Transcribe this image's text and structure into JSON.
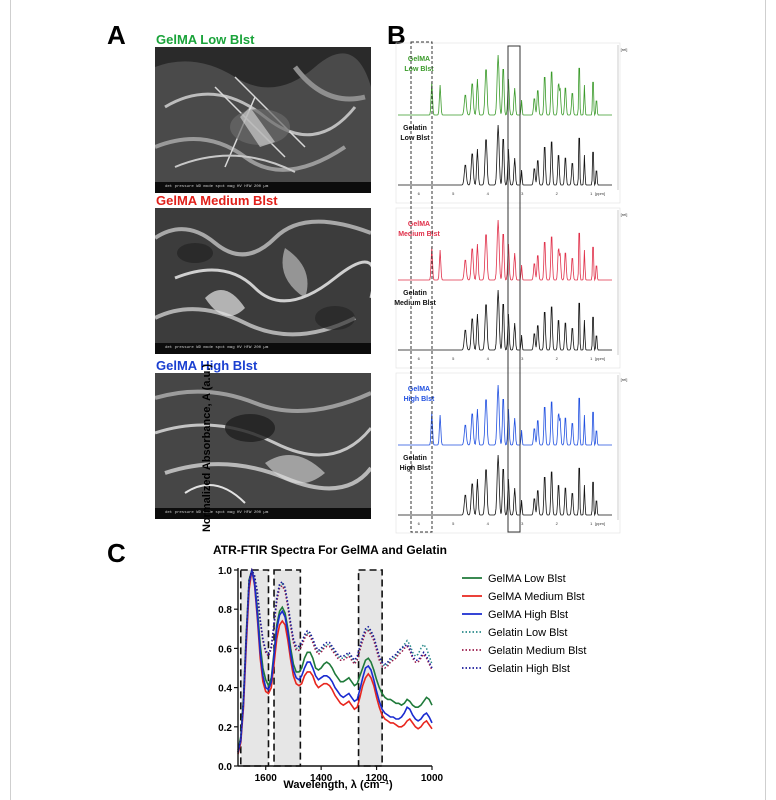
{
  "panels": {
    "a": "A",
    "b": "B",
    "c": "C"
  },
  "sem": [
    {
      "title": "GelMA Low Blst",
      "color": "#1aa33a",
      "meta": "det   pressure   WD   mode  spot  mag   HV      HFW                                       200 µm"
    },
    {
      "title": "GelMA Medium Blst",
      "color": "#e0201a",
      "meta": "det   pressure   WD   mode  spot  mag   HV      HFW                                       200 µm"
    },
    {
      "title": "GelMA High Blst",
      "color": "#1a3fd0",
      "meta": "det   pressure   WD   mode  spot  mag   HV      HFW                                       200 µm"
    }
  ],
  "nmr": {
    "groups": [
      {
        "top_label": [
          "GelMA",
          "Low Blst"
        ],
        "top_color": "#3a9a2a",
        "bottom_label": [
          "Gelatin",
          "Low Blst"
        ]
      },
      {
        "top_label": [
          "GelMA",
          "Medium Blst"
        ],
        "top_color": "#e0304a",
        "bottom_label": [
          "Gelatin",
          "Medium Blst"
        ]
      },
      {
        "top_label": [
          "GelMA",
          "High Blst"
        ],
        "top_color": "#2050e0",
        "bottom_label": [
          "Gelatin",
          "High Blst"
        ]
      }
    ],
    "axis_unit": "[ppm]",
    "x_ticks": [
      "6",
      "5",
      "4",
      "3",
      "2",
      "1"
    ],
    "y_unit": "[rel]"
  },
  "chart_data": {
    "type": "line",
    "title": "ATR-FTIR Spectra For GelMA and Gelatin",
    "xlabel": "Wavelength, λ (cm⁻¹)",
    "ylabel": "Normalized Absorbance, A (a.u.)",
    "xlim": [
      1700,
      1000
    ],
    "ylim": [
      0.0,
      1.0
    ],
    "x_ticks": [
      1600,
      1400,
      1200,
      1000
    ],
    "y_ticks": [
      0.0,
      0.2,
      0.4,
      0.6,
      0.8,
      1.0
    ],
    "highlight_bands": [
      [
        1690,
        1590
      ],
      [
        1570,
        1475
      ],
      [
        1265,
        1180
      ]
    ],
    "legend_position": "right",
    "x": [
      1700,
      1690,
      1680,
      1670,
      1660,
      1650,
      1640,
      1630,
      1620,
      1610,
      1600,
      1590,
      1580,
      1570,
      1560,
      1550,
      1540,
      1530,
      1520,
      1510,
      1500,
      1490,
      1480,
      1470,
      1460,
      1450,
      1440,
      1430,
      1420,
      1410,
      1400,
      1390,
      1380,
      1370,
      1360,
      1350,
      1340,
      1330,
      1320,
      1310,
      1300,
      1290,
      1280,
      1270,
      1260,
      1250,
      1240,
      1230,
      1220,
      1210,
      1200,
      1190,
      1180,
      1170,
      1160,
      1150,
      1140,
      1130,
      1120,
      1110,
      1100,
      1090,
      1080,
      1070,
      1060,
      1050,
      1040,
      1030,
      1020,
      1010,
      1000
    ],
    "series": [
      {
        "name": "GelMA Low Blst",
        "color": "#1f7a3a",
        "dash": "solid",
        "values": [
          0.08,
          0.15,
          0.35,
          0.68,
          0.95,
          1.0,
          0.94,
          0.8,
          0.62,
          0.5,
          0.44,
          0.41,
          0.45,
          0.58,
          0.72,
          0.79,
          0.81,
          0.78,
          0.7,
          0.6,
          0.52,
          0.48,
          0.48,
          0.5,
          0.55,
          0.58,
          0.58,
          0.55,
          0.5,
          0.49,
          0.5,
          0.52,
          0.53,
          0.52,
          0.5,
          0.47,
          0.45,
          0.43,
          0.43,
          0.44,
          0.45,
          0.43,
          0.41,
          0.42,
          0.46,
          0.5,
          0.54,
          0.55,
          0.53,
          0.49,
          0.44,
          0.4,
          0.37,
          0.35,
          0.34,
          0.34,
          0.33,
          0.32,
          0.32,
          0.31,
          0.32,
          0.34,
          0.33,
          0.31,
          0.3,
          0.3,
          0.31,
          0.33,
          0.35,
          0.34,
          0.31
        ]
      },
      {
        "name": "GelMA Medium Blst",
        "color": "#e8261e",
        "dash": "solid",
        "values": [
          0.06,
          0.12,
          0.3,
          0.62,
          0.9,
          1.0,
          0.92,
          0.75,
          0.55,
          0.43,
          0.38,
          0.37,
          0.4,
          0.52,
          0.65,
          0.72,
          0.74,
          0.72,
          0.64,
          0.54,
          0.46,
          0.42,
          0.41,
          0.42,
          0.46,
          0.48,
          0.48,
          0.46,
          0.42,
          0.4,
          0.41,
          0.42,
          0.42,
          0.41,
          0.39,
          0.36,
          0.34,
          0.32,
          0.31,
          0.32,
          0.33,
          0.31,
          0.29,
          0.3,
          0.35,
          0.41,
          0.45,
          0.47,
          0.45,
          0.41,
          0.35,
          0.3,
          0.26,
          0.24,
          0.23,
          0.22,
          0.22,
          0.21,
          0.2,
          0.2,
          0.21,
          0.23,
          0.24,
          0.22,
          0.2,
          0.19,
          0.2,
          0.22,
          0.23,
          0.21,
          0.19
        ]
      },
      {
        "name": "GelMA High Blst",
        "color": "#1a2bd0",
        "dash": "solid",
        "values": [
          0.07,
          0.13,
          0.32,
          0.65,
          0.93,
          1.0,
          0.93,
          0.77,
          0.58,
          0.46,
          0.4,
          0.39,
          0.43,
          0.56,
          0.7,
          0.77,
          0.79,
          0.76,
          0.68,
          0.57,
          0.49,
          0.45,
          0.44,
          0.46,
          0.5,
          0.53,
          0.53,
          0.5,
          0.46,
          0.44,
          0.45,
          0.46,
          0.46,
          0.45,
          0.43,
          0.4,
          0.38,
          0.36,
          0.35,
          0.36,
          0.37,
          0.35,
          0.33,
          0.34,
          0.39,
          0.45,
          0.5,
          0.51,
          0.49,
          0.44,
          0.38,
          0.33,
          0.29,
          0.27,
          0.26,
          0.25,
          0.25,
          0.24,
          0.24,
          0.25,
          0.27,
          0.3,
          0.29,
          0.26,
          0.24,
          0.23,
          0.24,
          0.26,
          0.27,
          0.25,
          0.22
        ]
      },
      {
        "name": "Gelatin Low Blst",
        "color": "#2a8a8a",
        "dash": "dotted",
        "values": [
          0.07,
          0.14,
          0.34,
          0.67,
          0.95,
          1.0,
          0.97,
          0.88,
          0.74,
          0.64,
          0.58,
          0.56,
          0.6,
          0.72,
          0.85,
          0.92,
          0.93,
          0.9,
          0.82,
          0.72,
          0.64,
          0.6,
          0.6,
          0.62,
          0.66,
          0.68,
          0.67,
          0.64,
          0.6,
          0.58,
          0.59,
          0.61,
          0.62,
          0.62,
          0.6,
          0.58,
          0.56,
          0.55,
          0.55,
          0.56,
          0.57,
          0.55,
          0.53,
          0.55,
          0.6,
          0.65,
          0.69,
          0.7,
          0.68,
          0.65,
          0.6,
          0.55,
          0.52,
          0.51,
          0.52,
          0.54,
          0.55,
          0.56,
          0.58,
          0.6,
          0.62,
          0.64,
          0.62,
          0.58,
          0.56,
          0.57,
          0.6,
          0.62,
          0.6,
          0.56,
          0.52
        ]
      },
      {
        "name": "Gelatin Medium Blst",
        "color": "#9a1a4a",
        "dash": "dotted",
        "values": [
          0.07,
          0.14,
          0.33,
          0.66,
          0.94,
          1.0,
          0.97,
          0.88,
          0.74,
          0.64,
          0.58,
          0.56,
          0.6,
          0.71,
          0.84,
          0.91,
          0.92,
          0.89,
          0.81,
          0.71,
          0.63,
          0.59,
          0.59,
          0.61,
          0.65,
          0.67,
          0.66,
          0.63,
          0.59,
          0.57,
          0.58,
          0.6,
          0.61,
          0.61,
          0.59,
          0.57,
          0.55,
          0.54,
          0.54,
          0.55,
          0.56,
          0.54,
          0.52,
          0.54,
          0.59,
          0.64,
          0.68,
          0.69,
          0.67,
          0.64,
          0.59,
          0.54,
          0.51,
          0.5,
          0.51,
          0.53,
          0.54,
          0.55,
          0.57,
          0.58,
          0.6,
          0.61,
          0.59,
          0.55,
          0.53,
          0.53,
          0.55,
          0.57,
          0.55,
          0.52,
          0.49
        ]
      },
      {
        "name": "Gelatin High Blst",
        "color": "#1a1a9a",
        "dash": "dotted",
        "values": [
          0.07,
          0.14,
          0.34,
          0.67,
          0.95,
          1.0,
          0.97,
          0.89,
          0.75,
          0.65,
          0.59,
          0.57,
          0.61,
          0.73,
          0.86,
          0.93,
          0.94,
          0.91,
          0.83,
          0.73,
          0.65,
          0.61,
          0.61,
          0.63,
          0.67,
          0.69,
          0.68,
          0.65,
          0.61,
          0.59,
          0.6,
          0.62,
          0.63,
          0.63,
          0.61,
          0.59,
          0.57,
          0.56,
          0.56,
          0.57,
          0.58,
          0.56,
          0.54,
          0.56,
          0.61,
          0.66,
          0.7,
          0.71,
          0.69,
          0.66,
          0.61,
          0.56,
          0.53,
          0.52,
          0.53,
          0.55,
          0.56,
          0.57,
          0.59,
          0.6,
          0.61,
          0.62,
          0.6,
          0.56,
          0.54,
          0.54,
          0.56,
          0.58,
          0.56,
          0.53,
          0.5
        ]
      }
    ]
  }
}
